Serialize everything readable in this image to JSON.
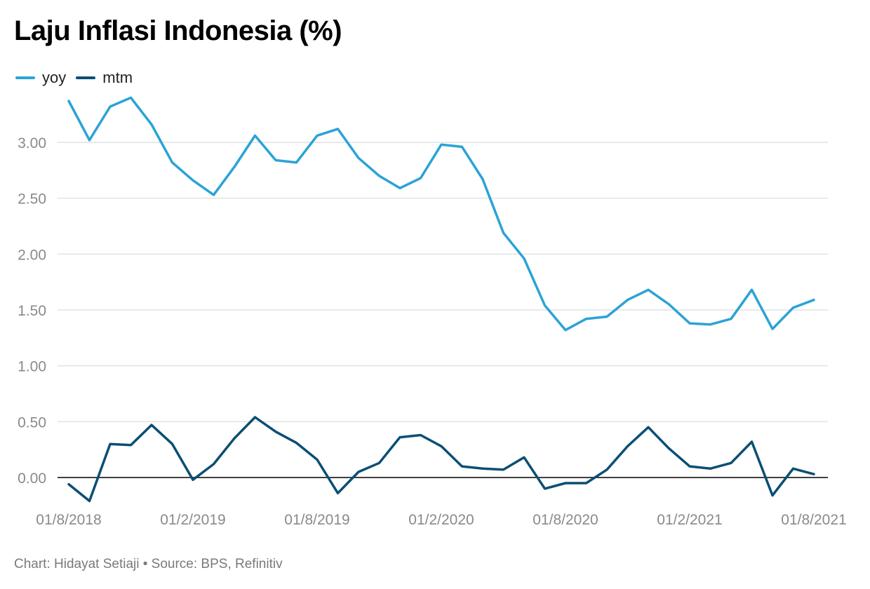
{
  "chart_data": {
    "type": "line",
    "title": "Laju Inflasi Indonesia (%)",
    "xlabel": "",
    "ylabel": "",
    "ylim": [
      -0.3,
      3.5
    ],
    "yticks": [
      0,
      0.5,
      1,
      1.5,
      2,
      2.5,
      3
    ],
    "ytick_labels": [
      "0.00",
      "0.50",
      "1.00",
      "1.50",
      "2.00",
      "2.50",
      "3.00"
    ],
    "x": [
      "2018-08",
      "2018-09",
      "2018-10",
      "2018-11",
      "2018-12",
      "2019-01",
      "2019-02",
      "2019-03",
      "2019-04",
      "2019-05",
      "2019-06",
      "2019-07",
      "2019-08",
      "2019-09",
      "2019-10",
      "2019-11",
      "2019-12",
      "2020-01",
      "2020-02",
      "2020-03",
      "2020-04",
      "2020-05",
      "2020-06",
      "2020-07",
      "2020-08",
      "2020-09",
      "2020-10",
      "2020-11",
      "2020-12",
      "2021-01",
      "2021-02",
      "2021-03",
      "2021-04",
      "2021-05",
      "2021-06",
      "2021-07",
      "2021-08"
    ],
    "xticks": [
      {
        "index": 0,
        "label": "01/8/2018"
      },
      {
        "index": 6,
        "label": "01/2/2019"
      },
      {
        "index": 12,
        "label": "01/8/2019"
      },
      {
        "index": 18,
        "label": "01/2/2020"
      },
      {
        "index": 24,
        "label": "01/8/2020"
      },
      {
        "index": 30,
        "label": "01/2/2021"
      },
      {
        "index": 36,
        "label": "01/8/2021"
      }
    ],
    "series": [
      {
        "name": "yoy",
        "color": "#2ba3d6",
        "values": [
          3.37,
          3.02,
          3.32,
          3.4,
          3.16,
          2.82,
          2.66,
          2.53,
          2.78,
          3.06,
          2.84,
          2.82,
          3.06,
          3.12,
          2.86,
          2.7,
          2.59,
          2.68,
          2.98,
          2.96,
          2.67,
          2.19,
          1.96,
          1.54,
          1.32,
          1.42,
          1.44,
          1.59,
          1.68,
          1.55,
          1.38,
          1.37,
          1.42,
          1.68,
          1.33,
          1.52,
          1.59
        ]
      },
      {
        "name": "mtm",
        "color": "#0b4f73",
        "values": [
          -0.06,
          -0.21,
          0.3,
          0.29,
          0.47,
          0.3,
          -0.02,
          0.12,
          0.35,
          0.54,
          0.41,
          0.31,
          0.16,
          -0.14,
          0.05,
          0.13,
          0.36,
          0.38,
          0.28,
          0.1,
          0.08,
          0.07,
          0.18,
          -0.1,
          -0.05,
          -0.05,
          0.07,
          0.28,
          0.45,
          0.26,
          0.1,
          0.08,
          0.13,
          0.32,
          -0.16,
          0.08,
          0.03
        ]
      }
    ]
  },
  "legend": {
    "items": [
      {
        "label": "yoy",
        "color": "#2ba3d6"
      },
      {
        "label": "mtm",
        "color": "#0b4f73"
      }
    ]
  },
  "footer": {
    "credit": "Chart: Hidayat Setiaji • Source: BPS, Refinitiv"
  }
}
